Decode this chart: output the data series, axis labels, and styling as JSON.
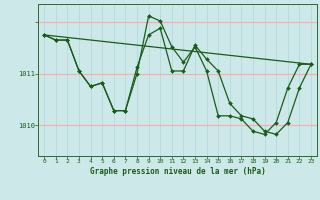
{
  "background_color": "#cce8e8",
  "grid_color_vertical": "#b0d8d8",
  "grid_color_horizontal": "#ffaaaa",
  "line_color": "#1a5c1a",
  "marker_color": "#1a5c1a",
  "xlabel": "Graphe pression niveau de la mer (hPa)",
  "ylim": [
    1009.4,
    1012.35
  ],
  "yticks": [
    1010,
    1011,
    1012
  ],
  "ytick_labels": [
    "1010",
    "1011",
    ""
  ],
  "xlim": [
    -0.5,
    23.5
  ],
  "xticks": [
    0,
    1,
    2,
    3,
    4,
    5,
    6,
    7,
    8,
    9,
    10,
    11,
    12,
    13,
    14,
    15,
    16,
    17,
    18,
    19,
    20,
    21,
    22,
    23
  ],
  "series1_x": [
    0,
    1,
    2,
    3,
    4,
    5,
    6,
    7,
    8,
    9,
    10,
    11,
    12,
    13,
    14,
    15,
    16,
    17,
    18,
    19,
    20,
    21,
    22,
    23
  ],
  "series1_y": [
    1011.75,
    1011.65,
    1011.65,
    1011.05,
    1010.75,
    1010.82,
    1010.28,
    1010.28,
    1011.12,
    1011.75,
    1011.88,
    1011.05,
    1011.05,
    1011.55,
    1011.28,
    1011.05,
    1010.42,
    1010.18,
    1010.12,
    1009.88,
    1009.82,
    1010.05,
    1010.72,
    1011.18
  ],
  "series2_x": [
    0,
    1,
    2,
    3,
    4,
    5,
    6,
    7,
    8,
    9,
    10,
    11,
    12,
    13,
    14,
    15,
    16,
    17,
    18,
    19,
    20,
    21,
    22,
    23
  ],
  "series2_y": [
    1011.75,
    1011.65,
    1011.65,
    1011.05,
    1010.75,
    1010.82,
    1010.28,
    1010.28,
    1011.0,
    1012.12,
    1012.02,
    1011.52,
    1011.22,
    1011.52,
    1011.05,
    1010.18,
    1010.18,
    1010.12,
    1009.88,
    1009.82,
    1010.05,
    1010.72,
    1011.18,
    1011.18
  ],
  "series3_x": [
    0,
    23
  ],
  "series3_y": [
    1011.75,
    1011.18
  ]
}
